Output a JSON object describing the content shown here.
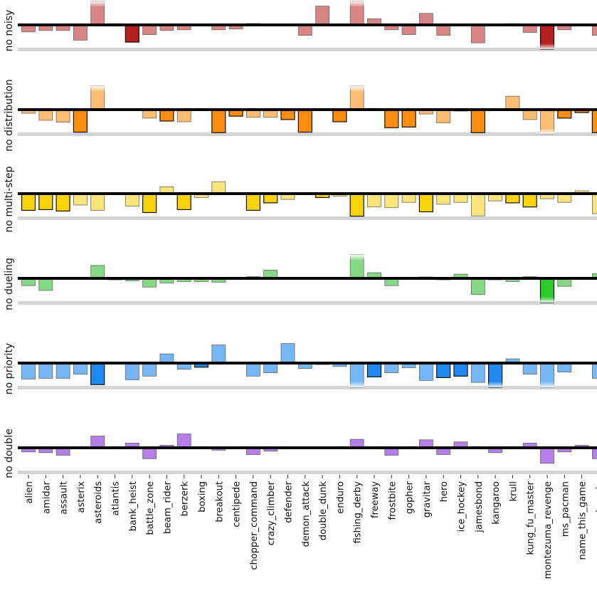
{
  "chart_data": {
    "type": "bar",
    "title": "",
    "xlabel": "",
    "ylim": [
      -1,
      1
    ],
    "grid": false,
    "categories": [
      "alien",
      "amidar",
      "assault",
      "asterix",
      "asteroids",
      "atlantis",
      "bank_heist",
      "battle_zone",
      "beam_rider",
      "berzerk",
      "boxing",
      "breakout",
      "centipede",
      "chopper_command",
      "crazy_climber",
      "defender",
      "demon_attack",
      "double_dunk",
      "enduro",
      "fishing_derby",
      "freeway",
      "frostbite",
      "gopher",
      "gravitar",
      "hero",
      "ice_hockey",
      "jamesbond",
      "kangaroo",
      "krull",
      "kung_fu_master",
      "montezuma_revenge",
      "ms_pacman",
      "name_this_game",
      "phoenix"
    ],
    "series": [
      {
        "name": "no noisy",
        "light": "#d98585",
        "dark": "#b51f1f",
        "values": [
          -0.29,
          -0.23,
          -0.23,
          -0.63,
          1,
          0.03,
          -0.71,
          -0.4,
          -0.23,
          -0.2,
          0,
          -0.2,
          -0.17,
          0.06,
          0.04,
          -0.04,
          -0.43,
          0.8,
          0,
          1,
          0.26,
          -0.2,
          -0.4,
          0.49,
          -0.43,
          0,
          -0.74,
          0,
          0.01,
          -0.31,
          -1,
          -0.2,
          0,
          -0.43
        ],
        "highlighted": [
          5,
          6,
          28,
          30
        ]
      },
      {
        "name": "no distribution",
        "light": "#fbbd72",
        "dark": "#ff8c0c",
        "values": [
          -0.15,
          -0.44,
          -0.52,
          -0.93,
          1,
          0.04,
          0,
          -0.35,
          -0.47,
          -0.5,
          0,
          -0.95,
          -0.27,
          -0.32,
          -0.32,
          -0.41,
          -0.93,
          0,
          -0.5,
          1,
          0.03,
          -0.75,
          -0.72,
          -0.18,
          -0.55,
          -0.05,
          -0.95,
          0,
          0.57,
          -0.41,
          -1,
          -0.35,
          -0.12,
          -0.95
        ],
        "highlighted": [
          3,
          8,
          11,
          12,
          15,
          16,
          18,
          20,
          21,
          22,
          25,
          26,
          31,
          32,
          33
        ]
      },
      {
        "name": "no multi-step",
        "light": "#fbe47a",
        "dark": "#f8d30a",
        "values": [
          -0.69,
          -0.66,
          -0.72,
          -0.47,
          -0.69,
          0,
          -0.52,
          -0.78,
          0.29,
          -0.66,
          -0.16,
          0.51,
          0,
          -0.69,
          -0.38,
          -0.24,
          0,
          -0.16,
          -0.1,
          -0.93,
          -0.55,
          -0.58,
          -0.36,
          -0.75,
          -0.44,
          -0.36,
          -0.92,
          -0.3,
          -0.38,
          -0.55,
          -0.21,
          -0.36,
          0.12,
          -0.83
        ],
        "highlighted": [
          0,
          1,
          2,
          7,
          9,
          13,
          14,
          17,
          19,
          23,
          28,
          29
        ]
      },
      {
        "name": "no dueling",
        "light": "#85d985",
        "dark": "#2ecb2e",
        "values": [
          -0.3,
          -0.5,
          0,
          0,
          0.55,
          -0.05,
          -0.1,
          -0.36,
          -0.19,
          -0.13,
          -0.13,
          -0.16,
          0,
          0.07,
          0.35,
          0,
          0,
          0,
          0,
          1,
          0.24,
          -0.3,
          0,
          0.05,
          -0.05,
          0.18,
          -0.67,
          -0.05,
          -0.13,
          0.07,
          -1,
          -0.33,
          0,
          0.2
        ],
        "highlighted": [
          5,
          23,
          24,
          27,
          30
        ]
      },
      {
        "name": "no priority",
        "light": "#75b6f6",
        "dark": "#1f8bf2",
        "values": [
          -0.66,
          -0.63,
          -0.63,
          -0.46,
          -0.89,
          0,
          -0.69,
          -0.54,
          0.39,
          -0.25,
          -0.17,
          0.77,
          0,
          -0.54,
          -0.4,
          0.83,
          -0.22,
          -0.05,
          -0.14,
          -1,
          -0.57,
          -0.4,
          -0.19,
          -0.72,
          -0.6,
          -0.54,
          -0.8,
          -1,
          0.18,
          -0.46,
          -1,
          -0.37,
          0,
          -0.63
        ],
        "highlighted": [
          4,
          10,
          17,
          20,
          24,
          25,
          27
        ]
      },
      {
        "name": "no double",
        "light": "#b57ee8",
        "dark": "#9a4fe0",
        "values": [
          -0.17,
          -0.2,
          -0.31,
          0,
          0.5,
          0.03,
          0.2,
          -0.45,
          0.11,
          0.59,
          0,
          -0.1,
          0,
          -0.28,
          -0.14,
          0,
          0,
          0,
          0,
          0.36,
          0,
          -0.31,
          0,
          0.34,
          -0.28,
          0.25,
          0,
          -0.2,
          0,
          0.2,
          -0.64,
          -0.17,
          0.11,
          -0.45
        ],
        "highlighted": []
      }
    ]
  }
}
